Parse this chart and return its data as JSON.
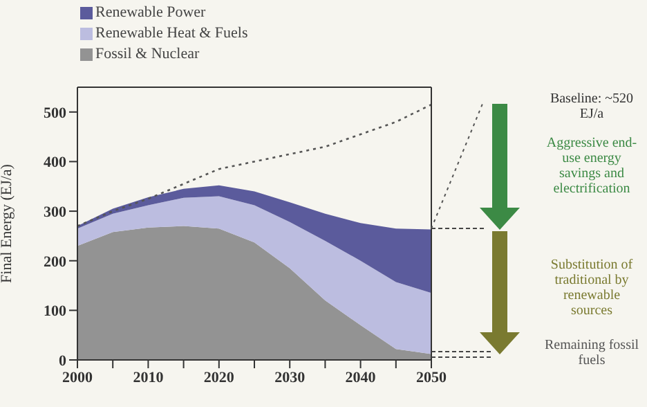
{
  "chart_data": {
    "type": "area",
    "ylabel": "Final Energy (EJ/a)",
    "x": [
      2000,
      2005,
      2010,
      2015,
      2020,
      2025,
      2030,
      2035,
      2040,
      2045,
      2050
    ],
    "stacked": true,
    "series": [
      {
        "name": "Fossil & Nuclear",
        "color": "#939393",
        "values": [
          230,
          258,
          267,
          270,
          265,
          237,
          185,
          120,
          70,
          22,
          12
        ]
      },
      {
        "name": "Renewable Heat & Fuels",
        "color": "#bcbde0",
        "values": [
          35,
          37,
          45,
          57,
          65,
          75,
          93,
          120,
          130,
          135,
          123
        ]
      },
      {
        "name": "Renewable Power",
        "color": "#5b5b9c",
        "values": [
          5,
          10,
          16,
          18,
          22,
          28,
          40,
          55,
          76,
          108,
          128
        ]
      },
      {
        "type": "line",
        "color": "#555555",
        "line_style": "dotted",
        "values": [
          270,
          300,
          325,
          355,
          385,
          400,
          415,
          430,
          455,
          480,
          515
        ]
      }
    ],
    "xlim": [
      2000,
      2050
    ],
    "xticks": [
      2000,
      {
        "value": 2005,
        "label": null
      },
      2010,
      {
        "value": 2015,
        "label": null
      },
      2020,
      {
        "value": 2025,
        "label": null
      },
      2030,
      {
        "value": 2035,
        "label": null
      },
      2040,
      {
        "value": 2045,
        "label": null
      },
      2050
    ],
    "ylim": [
      0,
      550
    ],
    "yticks": [
      0,
      100,
      200,
      300,
      400,
      500
    ],
    "grid": false,
    "legend": "top left",
    "marker": "none",
    "annotations": [
      "Baseline: ~520 EJ/a",
      "Aggressive end-use energy savings and electrification",
      "Substitution of traditional by renewable sources",
      "Remaining fossil fuels"
    ]
  }
}
